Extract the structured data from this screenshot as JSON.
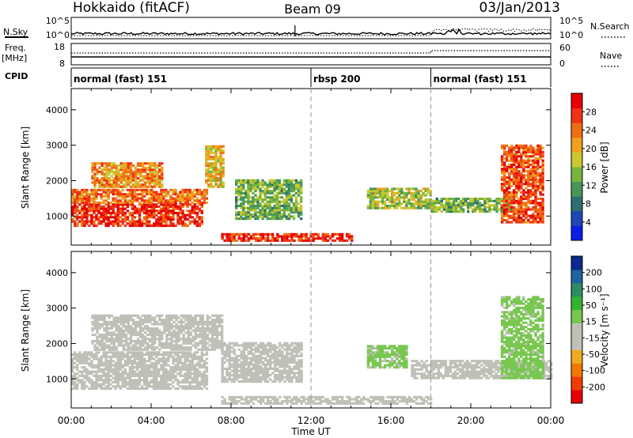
{
  "header": {
    "station": "Hokkaido (fitACF)",
    "beam": "Beam 09",
    "date": "03/Jan/2013"
  },
  "strip_labels": {
    "nsky": "N.Sky",
    "nsearch": "N.Search",
    "freq": "Freq.",
    "freq_unit": "[MHz]",
    "nave": "Nave",
    "cpid": "CPID"
  },
  "strip_ticks": {
    "nsky_left_top": "10^5",
    "nsky_left_bottom": "10^0",
    "nsky_right_top": "10^5",
    "nsky_right_bottom": "10^0",
    "freq_left_top": "18",
    "freq_left_bottom": "8",
    "nave_right_top": "60",
    "nave_right_bottom": "0"
  },
  "cpid_segments": [
    {
      "label": "normal (fast) 151",
      "start_hour": 0,
      "end_hour": 12
    },
    {
      "label": "rbsp 200",
      "start_hour": 12,
      "end_hour": 18
    },
    {
      "label": "normal (fast) 151",
      "start_hour": 18,
      "end_hour": 24
    }
  ],
  "chart_data": [
    {
      "type": "heatmap",
      "panel": "power",
      "ylabel": "Slant Range [km]",
      "xlabel": "Time UT",
      "x_tick_labels": [
        "00:00",
        "04:00",
        "08:00",
        "12:00",
        "16:00",
        "20:00",
        "00:00"
      ],
      "y_ticks": [
        "1000",
        "2000",
        "3000",
        "4000"
      ],
      "ylim": [
        180,
        4600
      ],
      "xlim_hours": [
        0,
        24
      ],
      "colorbar": {
        "label": "Power [dB]",
        "tick_labels": [
          "28",
          "24",
          "20",
          "16",
          "12",
          "8",
          "4"
        ],
        "range": [
          0,
          32
        ],
        "colors": [
          "#0a1ee6",
          "#1e46b4",
          "#2d6e73",
          "#46965a",
          "#78b43c",
          "#c8c832",
          "#f0a01e",
          "#f06e14",
          "#f03214",
          "#e60000"
        ]
      },
      "regions": [
        {
          "name": "band",
          "t0": 0.0,
          "t1": 6.5,
          "r0": 700,
          "r1": 1350,
          "power": 28
        },
        {
          "name": "band",
          "t0": 0.0,
          "t1": 6.8,
          "r0": 1350,
          "r1": 1750,
          "power": 24
        },
        {
          "name": "streaks",
          "t0": 1.0,
          "t1": 4.5,
          "r0": 1800,
          "r1": 2500,
          "power": 22
        },
        {
          "name": "blob",
          "t0": 6.7,
          "t1": 7.6,
          "r0": 1800,
          "r1": 3000,
          "power": 20
        },
        {
          "name": "patch",
          "t0": 8.2,
          "t1": 11.5,
          "r0": 900,
          "r1": 2000,
          "power": 14
        },
        {
          "name": "ground",
          "t0": 7.5,
          "t1": 14.0,
          "r0": 280,
          "r1": 520,
          "power": 28
        },
        {
          "name": "band",
          "t0": 14.8,
          "t1": 18.0,
          "r0": 1200,
          "r1": 1800,
          "power": 16
        },
        {
          "name": "band",
          "t0": 18.0,
          "t1": 22.0,
          "r0": 1100,
          "r1": 1500,
          "power": 14
        },
        {
          "name": "streaks",
          "t0": 21.5,
          "t1": 23.6,
          "r0": 800,
          "r1": 3000,
          "power": 26
        }
      ]
    },
    {
      "type": "heatmap",
      "panel": "velocity",
      "ylabel": "Slant Range [km]",
      "xlabel": "Time UT",
      "x_tick_labels": [
        "00:00",
        "04:00",
        "08:00",
        "12:00",
        "16:00",
        "20:00",
        "00:00"
      ],
      "y_ticks": [
        "1000",
        "2000",
        "3000",
        "4000"
      ],
      "ylim": [
        180,
        4600
      ],
      "xlim_hours": [
        0,
        24
      ],
      "colorbar": {
        "label": "Velocity [m s⁻¹]",
        "tick_labels": [
          "200",
          "100",
          "50",
          "15",
          "-15",
          "-50",
          "-100",
          "-200"
        ],
        "range": [
          -250,
          250
        ],
        "colors": [
          "#e60000",
          "#f03c00",
          "#f07800",
          "#f0aa1e",
          "#c0c0b8",
          "#c0c0b8",
          "#78c850",
          "#32b432",
          "#2d8c64",
          "#1e64a0",
          "#0a2a8c"
        ]
      },
      "regions": [
        {
          "name": "grey",
          "t0": 0.0,
          "t1": 6.8,
          "r0": 700,
          "r1": 1750,
          "velocity": 0
        },
        {
          "name": "grey",
          "t0": 1.0,
          "t1": 7.5,
          "r0": 1800,
          "r1": 2800,
          "velocity": 0
        },
        {
          "name": "grey",
          "t0": 7.5,
          "t1": 11.5,
          "r0": 900,
          "r1": 2000,
          "velocity": 0
        },
        {
          "name": "ground",
          "t0": 7.5,
          "t1": 18.0,
          "r0": 280,
          "r1": 520,
          "velocity": -30
        },
        {
          "name": "green",
          "t0": 14.8,
          "t1": 16.8,
          "r0": 1300,
          "r1": 1950,
          "velocity": 30
        },
        {
          "name": "grey",
          "t0": 17.0,
          "t1": 24.0,
          "r0": 1000,
          "r1": 1500,
          "velocity": 0
        },
        {
          "name": "green",
          "t0": 21.5,
          "t1": 23.6,
          "r0": 1000,
          "r1": 3300,
          "velocity": 35
        }
      ]
    }
  ]
}
